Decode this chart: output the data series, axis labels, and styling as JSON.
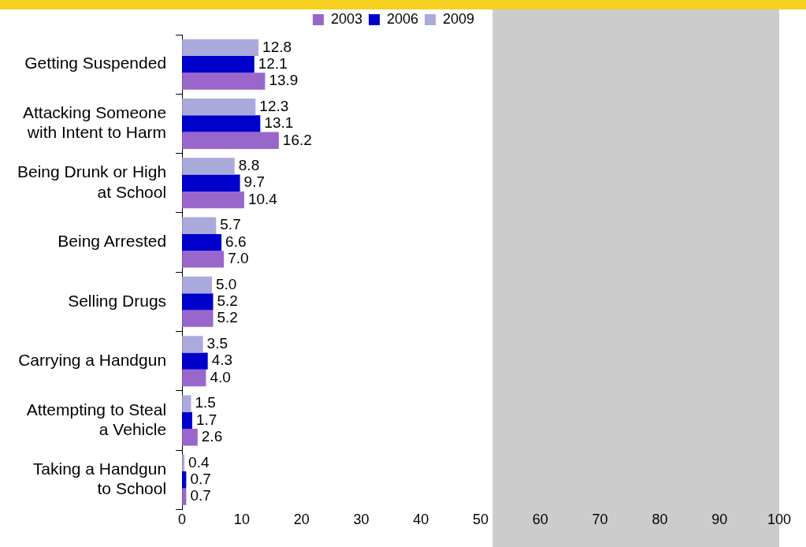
{
  "chart_data": {
    "type": "bar",
    "orientation": "horizontal",
    "categories": [
      "Getting Suspended",
      "Attacking Someone\nwith Intent to Harm",
      "Being Drunk or High\nat School",
      "Being Arrested",
      "Selling Drugs",
      "Carrying a Handgun",
      "Attempting to Steal\na Vehicle",
      "Taking a Handgun\nto School"
    ],
    "series": [
      {
        "name": "2003",
        "color": "#9966cc",
        "values": [
          13.9,
          16.2,
          10.4,
          7.0,
          5.2,
          4.0,
          2.6,
          0.7
        ],
        "value_labels": [
          "13.9",
          "16.2",
          "10.4",
          "7.0",
          "5.2",
          "4.0",
          "2.6",
          "0.7"
        ]
      },
      {
        "name": "2006",
        "color": "#0000cc",
        "values": [
          12.1,
          13.1,
          9.7,
          6.6,
          5.2,
          4.3,
          1.7,
          0.7
        ],
        "value_labels": [
          "12.1",
          "13.1",
          "9.7",
          "6.6",
          "5.2",
          "4.3",
          "1.7",
          "0.7"
        ]
      },
      {
        "name": "2009",
        "color": "#aaaadd",
        "values": [
          12.8,
          12.3,
          8.8,
          5.7,
          5.0,
          3.5,
          1.5,
          0.4
        ],
        "value_labels": [
          "12.8",
          "12.3",
          "8.8",
          "5.7",
          "5.0",
          "3.5",
          "1.5",
          "0.4"
        ]
      }
    ],
    "xlim": [
      0,
      100
    ],
    "xticks": [
      0,
      10,
      20,
      30,
      40,
      50,
      60,
      70,
      80,
      90,
      100
    ],
    "bands": [
      {
        "axis": "x",
        "from": 52,
        "to": 100,
        "color": "#cccccc"
      }
    ],
    "grid": false,
    "legend": "top"
  }
}
